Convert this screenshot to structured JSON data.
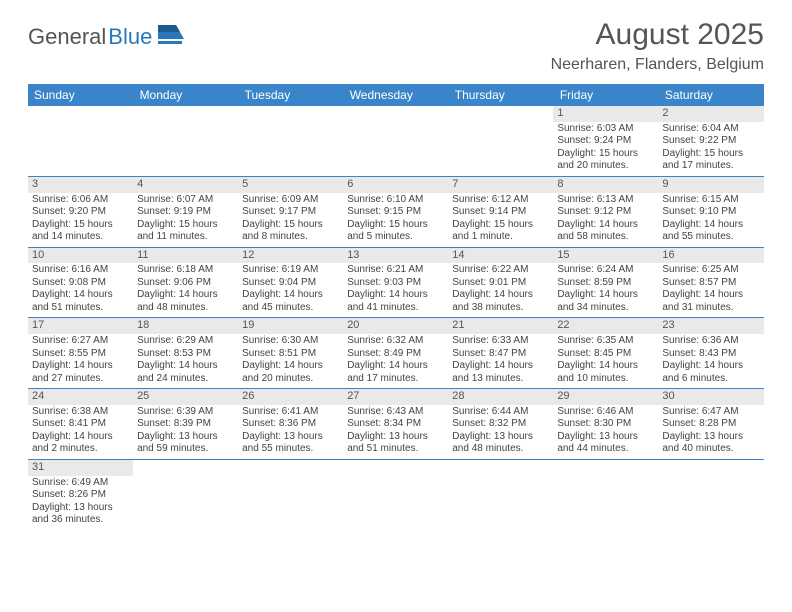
{
  "logo": {
    "text1": "General",
    "text2": "Blue"
  },
  "title": "August 2025",
  "location": "Neerharen, Flanders, Belgium",
  "colors": {
    "header_bg": "#3a85c9",
    "header_fg": "#ffffff",
    "daynum_bg": "#e9e9e9",
    "rule": "#3a85c9",
    "text": "#444444",
    "logo_gray": "#555555",
    "logo_blue": "#2a77bb"
  },
  "weekdays": [
    "Sunday",
    "Monday",
    "Tuesday",
    "Wednesday",
    "Thursday",
    "Friday",
    "Saturday"
  ],
  "weeks": [
    [
      null,
      null,
      null,
      null,
      null,
      {
        "n": "1",
        "sr": "Sunrise: 6:03 AM",
        "ss": "Sunset: 9:24 PM",
        "dl": "Daylight: 15 hours and 20 minutes."
      },
      {
        "n": "2",
        "sr": "Sunrise: 6:04 AM",
        "ss": "Sunset: 9:22 PM",
        "dl": "Daylight: 15 hours and 17 minutes."
      }
    ],
    [
      {
        "n": "3",
        "sr": "Sunrise: 6:06 AM",
        "ss": "Sunset: 9:20 PM",
        "dl": "Daylight: 15 hours and 14 minutes."
      },
      {
        "n": "4",
        "sr": "Sunrise: 6:07 AM",
        "ss": "Sunset: 9:19 PM",
        "dl": "Daylight: 15 hours and 11 minutes."
      },
      {
        "n": "5",
        "sr": "Sunrise: 6:09 AM",
        "ss": "Sunset: 9:17 PM",
        "dl": "Daylight: 15 hours and 8 minutes."
      },
      {
        "n": "6",
        "sr": "Sunrise: 6:10 AM",
        "ss": "Sunset: 9:15 PM",
        "dl": "Daylight: 15 hours and 5 minutes."
      },
      {
        "n": "7",
        "sr": "Sunrise: 6:12 AM",
        "ss": "Sunset: 9:14 PM",
        "dl": "Daylight: 15 hours and 1 minute."
      },
      {
        "n": "8",
        "sr": "Sunrise: 6:13 AM",
        "ss": "Sunset: 9:12 PM",
        "dl": "Daylight: 14 hours and 58 minutes."
      },
      {
        "n": "9",
        "sr": "Sunrise: 6:15 AM",
        "ss": "Sunset: 9:10 PM",
        "dl": "Daylight: 14 hours and 55 minutes."
      }
    ],
    [
      {
        "n": "10",
        "sr": "Sunrise: 6:16 AM",
        "ss": "Sunset: 9:08 PM",
        "dl": "Daylight: 14 hours and 51 minutes."
      },
      {
        "n": "11",
        "sr": "Sunrise: 6:18 AM",
        "ss": "Sunset: 9:06 PM",
        "dl": "Daylight: 14 hours and 48 minutes."
      },
      {
        "n": "12",
        "sr": "Sunrise: 6:19 AM",
        "ss": "Sunset: 9:04 PM",
        "dl": "Daylight: 14 hours and 45 minutes."
      },
      {
        "n": "13",
        "sr": "Sunrise: 6:21 AM",
        "ss": "Sunset: 9:03 PM",
        "dl": "Daylight: 14 hours and 41 minutes."
      },
      {
        "n": "14",
        "sr": "Sunrise: 6:22 AM",
        "ss": "Sunset: 9:01 PM",
        "dl": "Daylight: 14 hours and 38 minutes."
      },
      {
        "n": "15",
        "sr": "Sunrise: 6:24 AM",
        "ss": "Sunset: 8:59 PM",
        "dl": "Daylight: 14 hours and 34 minutes."
      },
      {
        "n": "16",
        "sr": "Sunrise: 6:25 AM",
        "ss": "Sunset: 8:57 PM",
        "dl": "Daylight: 14 hours and 31 minutes."
      }
    ],
    [
      {
        "n": "17",
        "sr": "Sunrise: 6:27 AM",
        "ss": "Sunset: 8:55 PM",
        "dl": "Daylight: 14 hours and 27 minutes."
      },
      {
        "n": "18",
        "sr": "Sunrise: 6:29 AM",
        "ss": "Sunset: 8:53 PM",
        "dl": "Daylight: 14 hours and 24 minutes."
      },
      {
        "n": "19",
        "sr": "Sunrise: 6:30 AM",
        "ss": "Sunset: 8:51 PM",
        "dl": "Daylight: 14 hours and 20 minutes."
      },
      {
        "n": "20",
        "sr": "Sunrise: 6:32 AM",
        "ss": "Sunset: 8:49 PM",
        "dl": "Daylight: 14 hours and 17 minutes."
      },
      {
        "n": "21",
        "sr": "Sunrise: 6:33 AM",
        "ss": "Sunset: 8:47 PM",
        "dl": "Daylight: 14 hours and 13 minutes."
      },
      {
        "n": "22",
        "sr": "Sunrise: 6:35 AM",
        "ss": "Sunset: 8:45 PM",
        "dl": "Daylight: 14 hours and 10 minutes."
      },
      {
        "n": "23",
        "sr": "Sunrise: 6:36 AM",
        "ss": "Sunset: 8:43 PM",
        "dl": "Daylight: 14 hours and 6 minutes."
      }
    ],
    [
      {
        "n": "24",
        "sr": "Sunrise: 6:38 AM",
        "ss": "Sunset: 8:41 PM",
        "dl": "Daylight: 14 hours and 2 minutes."
      },
      {
        "n": "25",
        "sr": "Sunrise: 6:39 AM",
        "ss": "Sunset: 8:39 PM",
        "dl": "Daylight: 13 hours and 59 minutes."
      },
      {
        "n": "26",
        "sr": "Sunrise: 6:41 AM",
        "ss": "Sunset: 8:36 PM",
        "dl": "Daylight: 13 hours and 55 minutes."
      },
      {
        "n": "27",
        "sr": "Sunrise: 6:43 AM",
        "ss": "Sunset: 8:34 PM",
        "dl": "Daylight: 13 hours and 51 minutes."
      },
      {
        "n": "28",
        "sr": "Sunrise: 6:44 AM",
        "ss": "Sunset: 8:32 PM",
        "dl": "Daylight: 13 hours and 48 minutes."
      },
      {
        "n": "29",
        "sr": "Sunrise: 6:46 AM",
        "ss": "Sunset: 8:30 PM",
        "dl": "Daylight: 13 hours and 44 minutes."
      },
      {
        "n": "30",
        "sr": "Sunrise: 6:47 AM",
        "ss": "Sunset: 8:28 PM",
        "dl": "Daylight: 13 hours and 40 minutes."
      }
    ],
    [
      {
        "n": "31",
        "sr": "Sunrise: 6:49 AM",
        "ss": "Sunset: 8:26 PM",
        "dl": "Daylight: 13 hours and 36 minutes."
      },
      null,
      null,
      null,
      null,
      null,
      null
    ]
  ]
}
